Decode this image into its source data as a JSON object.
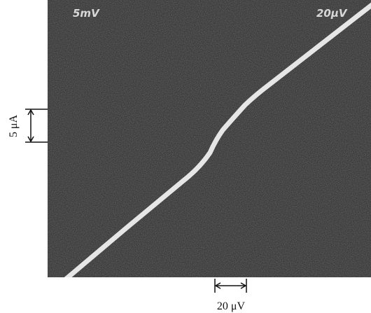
{
  "screen_labels": {
    "left": "5mV",
    "right": "20μV"
  },
  "scale_bars": {
    "vertical": "5 μA",
    "horizontal": "20 μV"
  }
}
